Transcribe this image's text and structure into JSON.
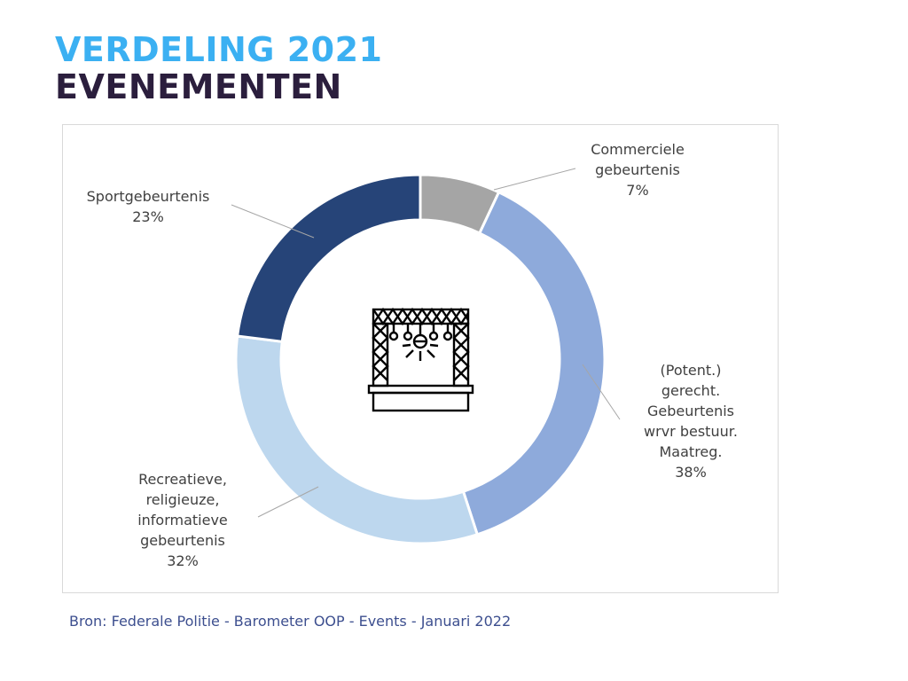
{
  "title": {
    "line1": "VERDELING 2021",
    "line2": "EVENEMENTEN"
  },
  "colors": {
    "title_line1": "#3bb0f2",
    "title_line2": "#2b1e3d",
    "source": "#3d4f8f"
  },
  "chart_data": {
    "type": "pie",
    "variant": "donut",
    "title": "VERDELING 2021 EVENEMENTEN",
    "center_icon": "stage-icon",
    "slices": [
      {
        "label_lines": [
          "Commerciele",
          "gebeurtenis"
        ],
        "percent_label": "7%",
        "value": 7,
        "color": "#a5a5a5"
      },
      {
        "label_lines": [
          "(Potent.)",
          "gerecht.",
          "Gebeurtenis",
          "wrvr bestuur.",
          "Maatreg."
        ],
        "percent_label": "38%",
        "value": 38,
        "color": "#8eaadb"
      },
      {
        "label_lines": [
          "Recreatieve,",
          "religieuze,",
          "informatieve",
          "gebeurtenis"
        ],
        "percent_label": "32%",
        "value": 32,
        "color": "#bdd7ee"
      },
      {
        "label_lines": [
          "Sportgebeurtenis"
        ],
        "percent_label": "23%",
        "value": 23,
        "color": "#264478"
      }
    ]
  },
  "source": "Bron: Federale Politie - Barometer OOP - Events - Januari 2022"
}
